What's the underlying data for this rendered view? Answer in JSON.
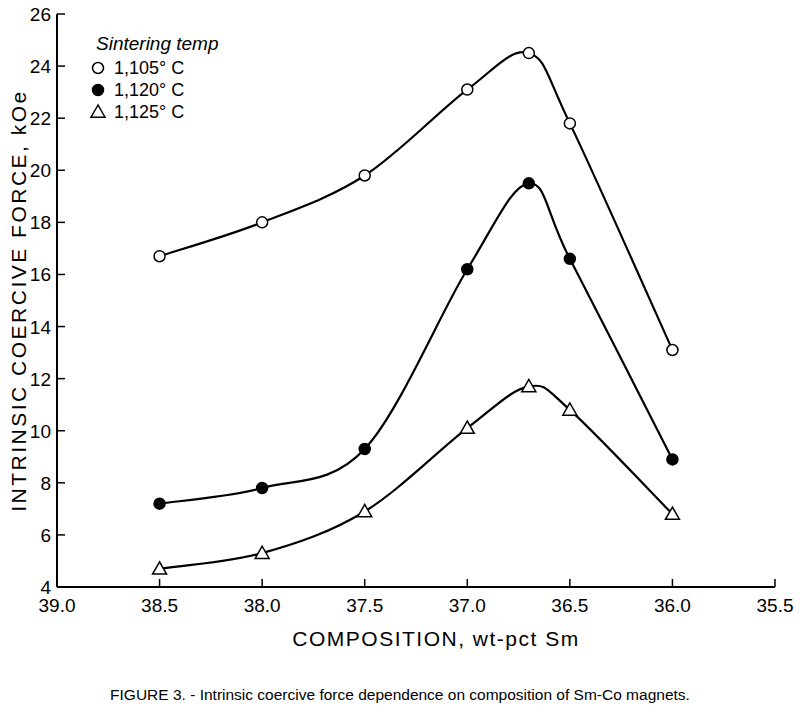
{
  "chart_data": {
    "type": "line",
    "title": "FIGURE 3. - Intrinsic coercive force dependence on composition of Sm-Co magnets.",
    "x_label": "COMPOSITION, wt-pct Sm",
    "y_label": "INTRINSIC COERCIVE FORCE, kOe",
    "legend_title": "Sintering temp",
    "x": [
      38.5,
      38.0,
      37.5,
      37.0,
      36.7,
      36.5,
      36.0
    ],
    "series": [
      {
        "name": "1,105° C",
        "color": "#000000",
        "marker": "open-circle",
        "line_style": "solid",
        "values": [
          16.7,
          18.0,
          19.8,
          23.1,
          24.5,
          21.8,
          13.1
        ]
      },
      {
        "name": "1,120° C",
        "color": "#000000",
        "marker": "circle",
        "line_style": "solid",
        "values": [
          7.2,
          7.8,
          9.3,
          16.2,
          19.5,
          16.6,
          8.9
        ]
      },
      {
        "name": "1,125° C",
        "color": "#000000",
        "marker": "open-triangle",
        "line_style": "solid",
        "values": [
          4.7,
          5.3,
          6.9,
          10.1,
          11.7,
          10.8,
          6.8
        ]
      }
    ],
    "xlim": [
      39.0,
      35.5
    ],
    "xticks": [
      {
        "value": 39.0,
        "label": "39.0"
      },
      38.5,
      {
        "value": 38.0,
        "label": "38.0"
      },
      37.5,
      {
        "value": 37.0,
        "label": "37.0"
      },
      36.5,
      {
        "value": 36.0,
        "label": "36.0"
      },
      35.5
    ],
    "ylim": [
      4,
      26
    ],
    "yticks": [
      4,
      6,
      8,
      10,
      12,
      14,
      16,
      18,
      20,
      22,
      24,
      26
    ],
    "grid": false,
    "legend": "upper left"
  }
}
